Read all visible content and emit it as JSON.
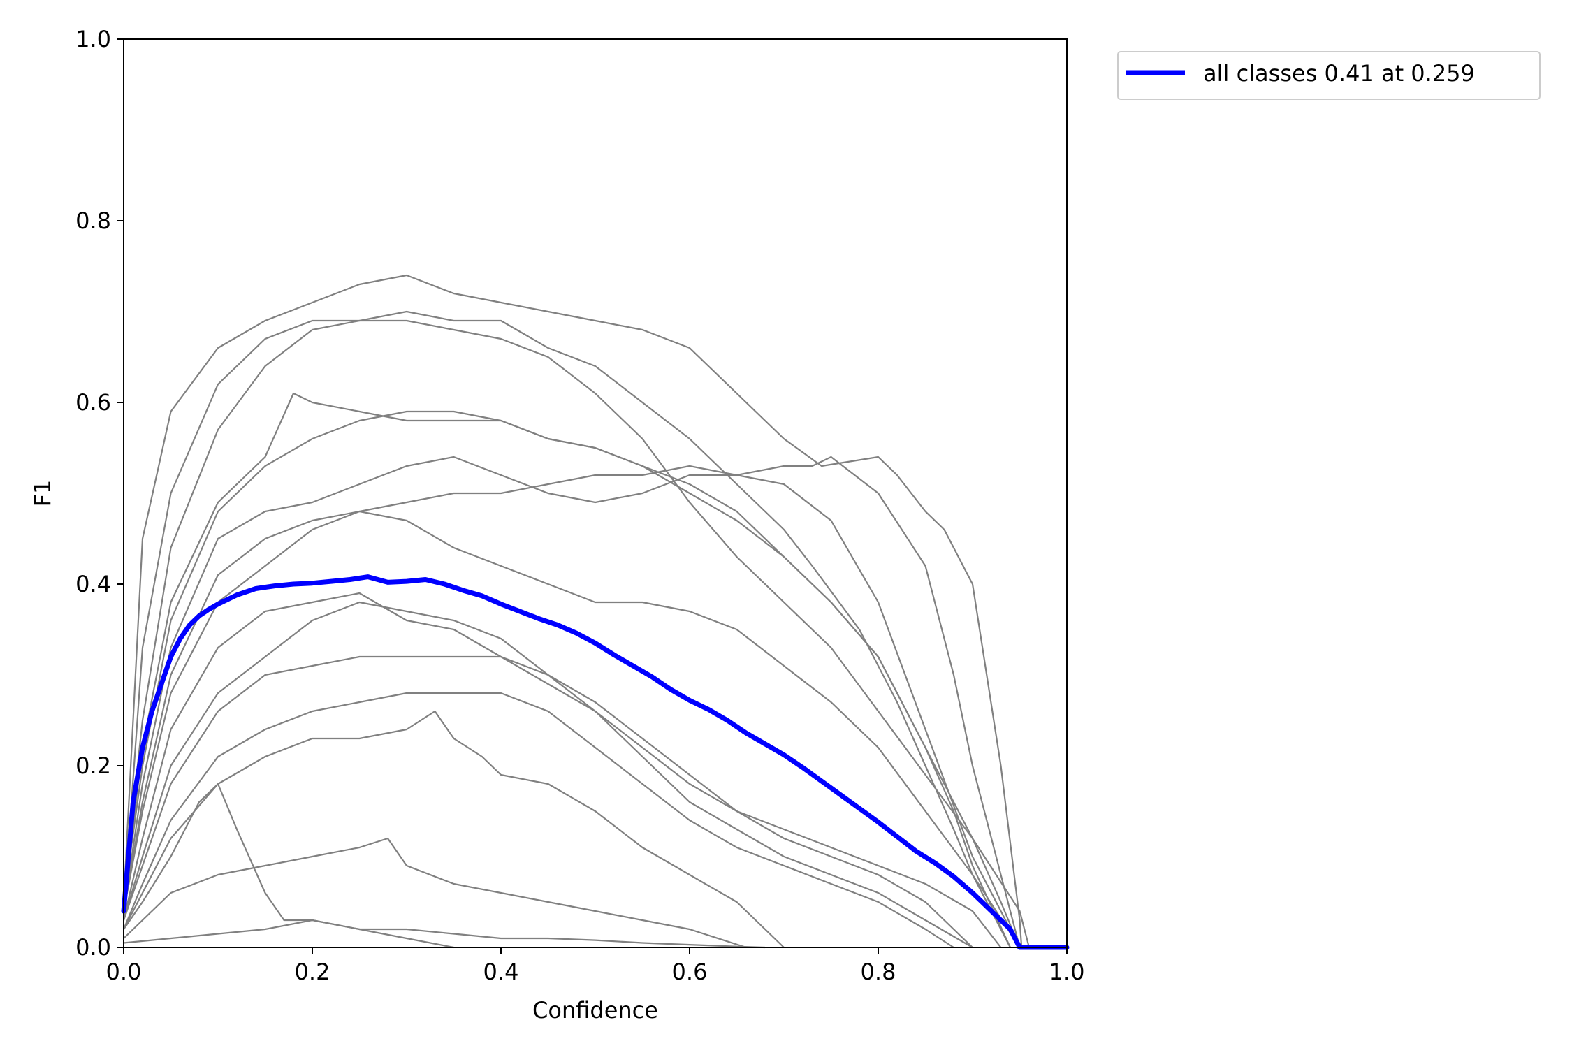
{
  "chart_data": {
    "type": "line",
    "title": "",
    "xlabel": "Confidence",
    "ylabel": "F1",
    "xlim": [
      0,
      1
    ],
    "ylim": [
      0,
      1
    ],
    "xticks": [
      "0.0",
      "0.2",
      "0.4",
      "0.6",
      "0.8",
      "1.0"
    ],
    "yticks": [
      "0.0",
      "0.2",
      "0.4",
      "0.6",
      "0.8",
      "1.0"
    ],
    "grid": false,
    "legend_position": "outside-top-right",
    "colors": {
      "class_curves": "#808080",
      "all_classes": "#0000ff"
    },
    "series": [
      {
        "kind": "class",
        "x": [
          0,
          0.02,
          0.05,
          0.1,
          0.15,
          0.2,
          0.25,
          0.3,
          0.35,
          0.4,
          0.45,
          0.5,
          0.55,
          0.6,
          0.62,
          0.66,
          0.7,
          0.74,
          0.8,
          0.82,
          0.85,
          0.87,
          0.9,
          0.93,
          0.95,
          0.952
        ],
        "y": [
          0.05,
          0.45,
          0.59,
          0.66,
          0.69,
          0.71,
          0.73,
          0.74,
          0.72,
          0.71,
          0.7,
          0.69,
          0.68,
          0.66,
          0.64,
          0.6,
          0.56,
          0.53,
          0.54,
          0.52,
          0.48,
          0.46,
          0.4,
          0.2,
          0.03,
          0
        ]
      },
      {
        "kind": "class",
        "x": [
          0,
          0.02,
          0.05,
          0.1,
          0.15,
          0.2,
          0.25,
          0.3,
          0.35,
          0.4,
          0.45,
          0.5,
          0.55,
          0.6,
          0.65,
          0.7,
          0.73,
          0.78,
          0.82,
          0.85,
          0.88,
          0.9,
          0.92,
          0.94
        ],
        "y": [
          0.04,
          0.33,
          0.5,
          0.62,
          0.67,
          0.69,
          0.69,
          0.7,
          0.69,
          0.69,
          0.66,
          0.64,
          0.6,
          0.56,
          0.51,
          0.46,
          0.42,
          0.35,
          0.27,
          0.2,
          0.13,
          0.08,
          0.04,
          0
        ]
      },
      {
        "kind": "class",
        "x": [
          0,
          0.02,
          0.05,
          0.1,
          0.15,
          0.2,
          0.25,
          0.3,
          0.35,
          0.4,
          0.45,
          0.5,
          0.55,
          0.6,
          0.65,
          0.7,
          0.75,
          0.8,
          0.85,
          0.9,
          0.95,
          0.96
        ],
        "y": [
          0.06,
          0.25,
          0.44,
          0.57,
          0.64,
          0.68,
          0.69,
          0.69,
          0.68,
          0.67,
          0.65,
          0.61,
          0.56,
          0.49,
          0.43,
          0.38,
          0.33,
          0.26,
          0.19,
          0.12,
          0.04,
          0
        ]
      },
      {
        "kind": "class",
        "x": [
          0,
          0.02,
          0.05,
          0.1,
          0.15,
          0.18,
          0.2,
          0.25,
          0.3,
          0.35,
          0.4,
          0.45,
          0.5,
          0.55,
          0.6,
          0.65,
          0.7,
          0.75,
          0.8,
          0.85,
          0.9,
          0.93,
          0.95
        ],
        "y": [
          0.05,
          0.22,
          0.38,
          0.49,
          0.54,
          0.61,
          0.6,
          0.59,
          0.58,
          0.58,
          0.58,
          0.56,
          0.55,
          0.53,
          0.51,
          0.48,
          0.43,
          0.38,
          0.32,
          0.22,
          0.12,
          0.05,
          0
        ]
      },
      {
        "kind": "class",
        "x": [
          0,
          0.02,
          0.05,
          0.1,
          0.15,
          0.2,
          0.25,
          0.3,
          0.35,
          0.4,
          0.45,
          0.5,
          0.55,
          0.6,
          0.65,
          0.7,
          0.75,
          0.8,
          0.85,
          0.88,
          0.9,
          0.94
        ],
        "y": [
          0.05,
          0.2,
          0.36,
          0.48,
          0.53,
          0.56,
          0.58,
          0.59,
          0.59,
          0.58,
          0.56,
          0.55,
          0.53,
          0.5,
          0.47,
          0.43,
          0.38,
          0.32,
          0.22,
          0.15,
          0.09,
          0
        ]
      },
      {
        "kind": "class",
        "x": [
          0,
          0.02,
          0.05,
          0.1,
          0.15,
          0.2,
          0.25,
          0.3,
          0.35,
          0.4,
          0.45,
          0.5,
          0.55,
          0.6,
          0.65,
          0.7,
          0.75,
          0.8,
          0.85,
          0.9,
          0.95
        ],
        "y": [
          0.04,
          0.18,
          0.33,
          0.45,
          0.48,
          0.49,
          0.51,
          0.53,
          0.54,
          0.52,
          0.5,
          0.49,
          0.5,
          0.52,
          0.52,
          0.51,
          0.47,
          0.38,
          0.24,
          0.1,
          0
        ]
      },
      {
        "kind": "class",
        "x": [
          0,
          0.02,
          0.05,
          0.1,
          0.15,
          0.2,
          0.25,
          0.3,
          0.35,
          0.4,
          0.45,
          0.5,
          0.55,
          0.6,
          0.65,
          0.7,
          0.73,
          0.75,
          0.8,
          0.85,
          0.88,
          0.9,
          0.93,
          0.95
        ],
        "y": [
          0.04,
          0.16,
          0.3,
          0.41,
          0.45,
          0.47,
          0.48,
          0.49,
          0.5,
          0.5,
          0.51,
          0.52,
          0.52,
          0.53,
          0.52,
          0.53,
          0.53,
          0.54,
          0.5,
          0.42,
          0.3,
          0.2,
          0.08,
          0
        ]
      },
      {
        "kind": "class",
        "x": [
          0,
          0.02,
          0.05,
          0.1,
          0.15,
          0.2,
          0.25,
          0.3,
          0.35,
          0.4,
          0.45,
          0.5,
          0.55,
          0.6,
          0.65,
          0.7,
          0.75,
          0.8,
          0.85,
          0.9,
          0.95
        ],
        "y": [
          0.04,
          0.15,
          0.28,
          0.38,
          0.42,
          0.46,
          0.48,
          0.47,
          0.44,
          0.42,
          0.4,
          0.38,
          0.38,
          0.37,
          0.35,
          0.31,
          0.27,
          0.22,
          0.15,
          0.08,
          0
        ]
      },
      {
        "kind": "class",
        "x": [
          0,
          0.02,
          0.05,
          0.1,
          0.15,
          0.2,
          0.25,
          0.3,
          0.35,
          0.4,
          0.45,
          0.5,
          0.55,
          0.6,
          0.65,
          0.7,
          0.75,
          0.8,
          0.85,
          0.9,
          0.93
        ],
        "y": [
          0.03,
          0.12,
          0.24,
          0.33,
          0.37,
          0.38,
          0.39,
          0.36,
          0.35,
          0.32,
          0.29,
          0.26,
          0.22,
          0.18,
          0.15,
          0.13,
          0.11,
          0.09,
          0.07,
          0.04,
          0
        ]
      },
      {
        "kind": "class",
        "x": [
          0,
          0.02,
          0.05,
          0.1,
          0.15,
          0.2,
          0.25,
          0.3,
          0.35,
          0.4,
          0.45,
          0.5,
          0.55,
          0.6,
          0.65,
          0.7,
          0.75,
          0.8,
          0.85,
          0.9
        ],
        "y": [
          0.03,
          0.1,
          0.2,
          0.28,
          0.32,
          0.36,
          0.38,
          0.37,
          0.36,
          0.34,
          0.3,
          0.26,
          0.21,
          0.16,
          0.13,
          0.1,
          0.08,
          0.06,
          0.03,
          0
        ]
      },
      {
        "kind": "class",
        "x": [
          0,
          0.02,
          0.05,
          0.1,
          0.15,
          0.2,
          0.25,
          0.3,
          0.35,
          0.4,
          0.45,
          0.5,
          0.55,
          0.6,
          0.65,
          0.7,
          0.75,
          0.8,
          0.85,
          0.9
        ],
        "y": [
          0.03,
          0.09,
          0.18,
          0.26,
          0.3,
          0.31,
          0.32,
          0.32,
          0.32,
          0.32,
          0.3,
          0.27,
          0.23,
          0.19,
          0.15,
          0.12,
          0.1,
          0.08,
          0.05,
          0
        ]
      },
      {
        "kind": "class",
        "x": [
          0,
          0.02,
          0.05,
          0.1,
          0.15,
          0.2,
          0.25,
          0.3,
          0.35,
          0.4,
          0.45,
          0.5,
          0.55,
          0.6,
          0.65,
          0.7,
          0.75,
          0.8,
          0.85,
          0.88
        ],
        "y": [
          0.02,
          0.07,
          0.14,
          0.21,
          0.24,
          0.26,
          0.27,
          0.28,
          0.28,
          0.28,
          0.26,
          0.22,
          0.18,
          0.14,
          0.11,
          0.09,
          0.07,
          0.05,
          0.02,
          0
        ]
      },
      {
        "kind": "class",
        "x": [
          0,
          0.02,
          0.05,
          0.1,
          0.15,
          0.2,
          0.25,
          0.3,
          0.33,
          0.35,
          0.38,
          0.4,
          0.45,
          0.5,
          0.55,
          0.6,
          0.65,
          0.7
        ],
        "y": [
          0.02,
          0.06,
          0.12,
          0.18,
          0.21,
          0.23,
          0.23,
          0.24,
          0.26,
          0.23,
          0.21,
          0.19,
          0.18,
          0.15,
          0.11,
          0.08,
          0.05,
          0
        ]
      },
      {
        "kind": "class",
        "x": [
          0,
          0.02,
          0.05,
          0.08,
          0.1,
          0.12,
          0.15,
          0.17,
          0.2,
          0.25,
          0.3,
          0.35,
          0.4,
          0.45,
          0.5,
          0.55,
          0.6,
          0.65,
          0.68
        ],
        "y": [
          0.02,
          0.05,
          0.1,
          0.16,
          0.18,
          0.13,
          0.06,
          0.03,
          0.03,
          0.02,
          0.02,
          0.015,
          0.01,
          0.01,
          0.008,
          0.005,
          0.003,
          0.001,
          0
        ]
      },
      {
        "kind": "class",
        "x": [
          0,
          0.02,
          0.05,
          0.1,
          0.15,
          0.2,
          0.25,
          0.28,
          0.3,
          0.35,
          0.4,
          0.45,
          0.5,
          0.55,
          0.6,
          0.66
        ],
        "y": [
          0.01,
          0.03,
          0.06,
          0.08,
          0.09,
          0.1,
          0.11,
          0.12,
          0.09,
          0.07,
          0.06,
          0.05,
          0.04,
          0.03,
          0.02,
          0
        ]
      },
      {
        "kind": "class",
        "x": [
          0,
          0.05,
          0.1,
          0.15,
          0.2,
          0.25,
          0.3,
          0.35
        ],
        "y": [
          0.005,
          0.01,
          0.015,
          0.02,
          0.03,
          0.02,
          0.01,
          0
        ]
      },
      {
        "kind": "all",
        "name": "all classes 0.41 at 0.259",
        "x": [
          0,
          0.005,
          0.01,
          0.02,
          0.03,
          0.04,
          0.05,
          0.06,
          0.07,
          0.08,
          0.09,
          0.1,
          0.12,
          0.14,
          0.16,
          0.18,
          0.2,
          0.22,
          0.24,
          0.259,
          0.28,
          0.3,
          0.32,
          0.34,
          0.36,
          0.38,
          0.4,
          0.42,
          0.44,
          0.46,
          0.48,
          0.5,
          0.52,
          0.54,
          0.56,
          0.58,
          0.6,
          0.62,
          0.64,
          0.66,
          0.68,
          0.7,
          0.72,
          0.74,
          0.76,
          0.78,
          0.8,
          0.82,
          0.84,
          0.86,
          0.88,
          0.9,
          0.92,
          0.94,
          0.95,
          1.0
        ],
        "y": [
          0.04,
          0.1,
          0.16,
          0.22,
          0.26,
          0.29,
          0.32,
          0.34,
          0.355,
          0.365,
          0.372,
          0.378,
          0.388,
          0.395,
          0.398,
          0.4,
          0.401,
          0.403,
          0.405,
          0.408,
          0.402,
          0.403,
          0.405,
          0.4,
          0.393,
          0.387,
          0.378,
          0.37,
          0.362,
          0.355,
          0.346,
          0.335,
          0.322,
          0.31,
          0.298,
          0.284,
          0.272,
          0.262,
          0.25,
          0.236,
          0.224,
          0.212,
          0.198,
          0.183,
          0.168,
          0.153,
          0.138,
          0.122,
          0.106,
          0.093,
          0.078,
          0.06,
          0.04,
          0.02,
          0,
          0
        ]
      }
    ]
  }
}
